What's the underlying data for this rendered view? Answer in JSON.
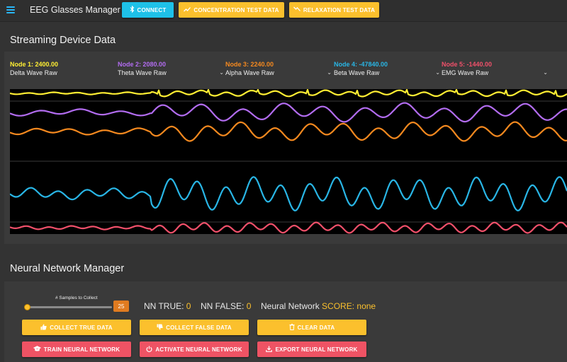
{
  "app": {
    "title": "EEG Glasses Manager"
  },
  "toolbar": {
    "connect_label": "CONNECT",
    "concentration_label": "CONCENTRATION TEST DATA",
    "relaxation_label": "RELAXATION TEST DATA"
  },
  "streaming": {
    "title": "Streaming Device Data",
    "nodes": [
      {
        "value": "Node 1: 2400.00",
        "mode": "Delta Wave Raw",
        "color": "#ffee33"
      },
      {
        "value": "Node 2: 2080.00",
        "mode": "Theta Wave Raw",
        "color": "#b26cf0"
      },
      {
        "value": "Node 3: 2240.00",
        "mode": "Alpha Wave Raw",
        "color": "#f5891f"
      },
      {
        "value": "Node 4: -47840.00",
        "mode": "Beta Wave Raw",
        "color": "#29b6e6"
      },
      {
        "value": "Node 5: -1440.00",
        "mode": "EMG Wave Raw",
        "color": "#f0506a"
      }
    ]
  },
  "nn": {
    "title": "Neural Network Manager",
    "slider_label": "# Samples to Collect",
    "slider_value": "25",
    "slider_fraction": 0.0,
    "true_label": "NN TRUE:",
    "true_value": "0",
    "false_label": "NN FALSE:",
    "false_value": "0",
    "score_label_a": "Neural Network",
    "score_label_b": "SCORE:",
    "score_value": "none",
    "buttons": {
      "collect_true": "COLLECT TRUE DATA",
      "collect_false": "COLLECT FALSE DATA",
      "clear": "CLEAR DATA",
      "train": "TRAIN NEURAL NETWORK",
      "activate": "ACTIVATE NEURAL NETWORK",
      "export": "EXPORT NEURAL NETWORK"
    }
  },
  "colors": {
    "accent_cyan": "#1ec1e8",
    "accent_yellow": "#fbc02d",
    "accent_red": "#ef5364",
    "background": "#333333"
  }
}
